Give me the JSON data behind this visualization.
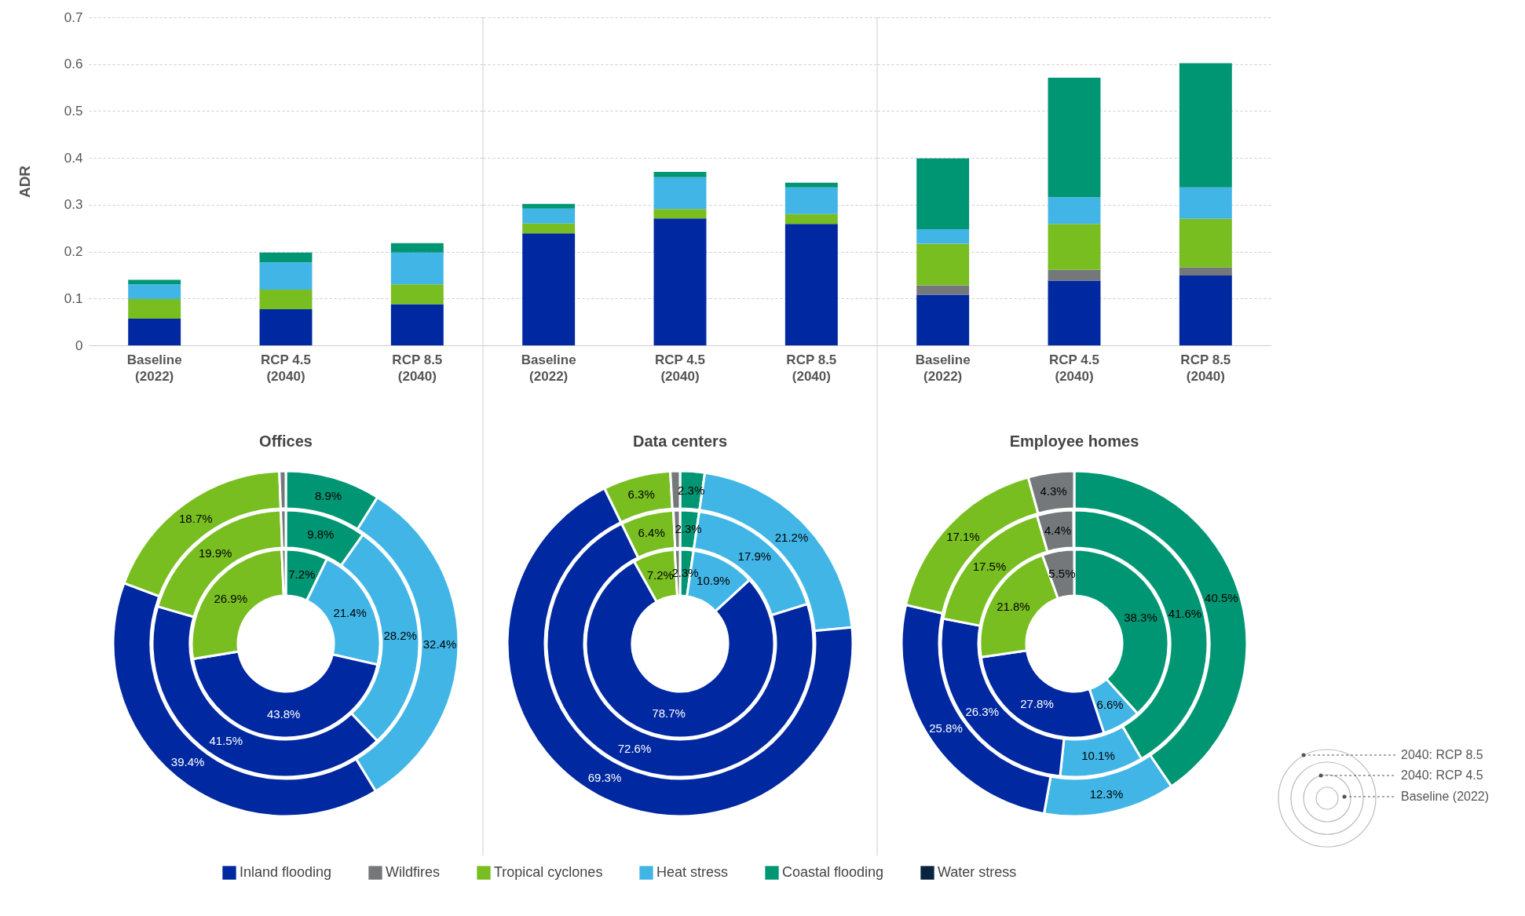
{
  "chart_data": [
    {
      "type": "bar",
      "stacked": true,
      "ylabel": "ADR",
      "categories": [
        "Baseline (2022)",
        "RCP 4.5 (2040)",
        "RCP 8.5 (2040)"
      ],
      "ylim": [
        0,
        0.7
      ],
      "yticks": [
        0,
        0.1,
        0.2,
        0.3,
        0.4,
        0.5,
        0.6,
        0.7
      ],
      "grid": "y",
      "legend": "bottom",
      "series": [
        {
          "name": "Inland flooding",
          "color": "#0028a0",
          "values": [
            0.057,
            0.077,
            0.088
          ]
        },
        {
          "name": "Wildfires",
          "color": "#75787b",
          "values": [
            null,
            null,
            null
          ]
        },
        {
          "name": "Tropical cyclones",
          "color": "#78be20",
          "values": [
            0.042,
            0.042,
            0.042
          ]
        },
        {
          "name": "Heat stress",
          "color": "#41b6e6",
          "values": [
            0.031,
            0.058,
            0.068
          ]
        },
        {
          "name": "Coastal flooding",
          "color": "#009673",
          "values": [
            0.01,
            0.021,
            0.02
          ]
        },
        {
          "name": "Water stress",
          "color": "#0c2340",
          "values": [
            null,
            null,
            null
          ]
        }
      ]
    },
    {
      "type": "bar",
      "stacked": true,
      "categories": [
        "Baseline (2022)",
        "RCP 4.5 (2040)",
        "RCP 8.5 (2040)"
      ],
      "ylim": [
        0,
        0.7
      ],
      "yticks": [
        0,
        0.1,
        0.2,
        0.3,
        0.4,
        0.5,
        0.6,
        0.7
      ],
      "grid": "y",
      "tick_labels": "x",
      "series": [
        {
          "color": "#0028a0",
          "values": [
            0.239,
            0.271,
            0.259
          ]
        },
        {
          "color": "#75787b",
          "values": [
            null,
            null,
            null
          ]
        },
        {
          "color": "#78be20",
          "values": [
            0.021,
            0.02,
            0.021
          ]
        },
        {
          "color": "#41b6e6",
          "values": [
            0.032,
            0.068,
            0.057
          ]
        },
        {
          "color": "#009673",
          "values": [
            0.01,
            0.011,
            0.01
          ]
        },
        {
          "color": "#0c2340",
          "values": [
            null,
            null,
            null
          ]
        }
      ]
    },
    {
      "type": "bar",
      "stacked": true,
      "categories": [
        "Baseline (2022)",
        "RCP 4.5 (2040)",
        "RCP 8.5 (2040)"
      ],
      "ylim": [
        0,
        0.7
      ],
      "yticks": [
        0,
        0.1,
        0.2,
        0.3,
        0.4,
        0.5,
        0.6,
        0.7
      ],
      "grid": "y",
      "tick_labels": "x",
      "series": [
        {
          "color": "#0028a0",
          "values": [
            0.108,
            0.138,
            0.149
          ]
        },
        {
          "color": "#75787b",
          "values": [
            0.02,
            0.023,
            0.017
          ]
        },
        {
          "color": "#78be20",
          "values": [
            0.089,
            0.098,
            0.104
          ]
        },
        {
          "color": "#41b6e6",
          "values": [
            0.031,
            0.057,
            0.067
          ]
        },
        {
          "color": "#009673",
          "values": [
            0.151,
            0.255,
            0.265
          ]
        },
        {
          "color": "#0c2340",
          "values": [
            null,
            null,
            null
          ]
        }
      ]
    },
    {
      "type": "donut",
      "title": "Offices",
      "categories": [
        null,
        null,
        null,
        null,
        null
      ],
      "colors": [
        "#009673",
        "#41b6e6",
        "#0028a0",
        "#78be20",
        "#75787b"
      ],
      "series": [
        {
          "values": [
            7.2,
            21.4,
            43.8,
            26.9,
            0.7
          ],
          "value_labels": [
            "7.2%",
            "21.4%",
            "43.8%",
            "26.9%",
            null
          ]
        },
        {
          "values": [
            9.8,
            28.2,
            41.5,
            19.9,
            0.6
          ],
          "value_labels": [
            "9.8%",
            "28.2%",
            "41.5%",
            "19.9%",
            null
          ]
        },
        {
          "values": [
            8.9,
            32.4,
            39.4,
            18.7,
            0.6
          ],
          "value_labels": [
            "8.9%",
            "32.4%",
            "39.4%",
            "18.7%",
            null
          ]
        }
      ]
    },
    {
      "type": "donut",
      "title": "Data centers",
      "categories": [
        null,
        null,
        null,
        null,
        null
      ],
      "colors": [
        "#009673",
        "#41b6e6",
        "#0028a0",
        "#78be20",
        "#75787b"
      ],
      "series": [
        {
          "values": [
            2.3,
            10.9,
            78.7,
            7.2,
            0.9
          ],
          "value_labels": [
            "2.3%",
            "10.9%",
            "78.7%",
            "7.2%",
            null
          ]
        },
        {
          "values": [
            2.3,
            17.9,
            72.6,
            6.4,
            0.8
          ],
          "value_labels": [
            "2.3%",
            "17.9%",
            "72.6%",
            "6.4%",
            null
          ]
        },
        {
          "values": [
            2.3,
            21.2,
            69.3,
            6.3,
            0.9
          ],
          "value_labels": [
            "2.3%",
            "21.2%",
            "69.3%",
            "6.3%",
            null
          ]
        }
      ]
    },
    {
      "type": "donut",
      "title": "Employee homes",
      "categories": [
        null,
        null,
        null,
        null,
        null
      ],
      "colors": [
        "#009673",
        "#41b6e6",
        "#0028a0",
        "#78be20",
        "#75787b"
      ],
      "series": [
        {
          "name": "Baseline (2022)",
          "values": [
            38.3,
            6.6,
            27.8,
            21.8,
            5.5
          ],
          "value_labels": [
            "38.3%",
            "6.6%",
            "27.8%",
            "21.8%",
            "5.5%"
          ]
        },
        {
          "name": "2040: RCP 4.5",
          "values": [
            41.6,
            10.1,
            26.3,
            17.5,
            4.4
          ],
          "value_labels": [
            "41.6%",
            "10.1%",
            "26.3%",
            "17.5%",
            "4.4%"
          ]
        },
        {
          "name": "2040: RCP 8.5",
          "values": [
            40.5,
            12.3,
            25.8,
            17.1,
            4.3
          ],
          "value_labels": [
            "40.5%",
            "12.3%",
            "25.8%",
            "17.1%",
            "4.3%"
          ]
        }
      ]
    }
  ]
}
